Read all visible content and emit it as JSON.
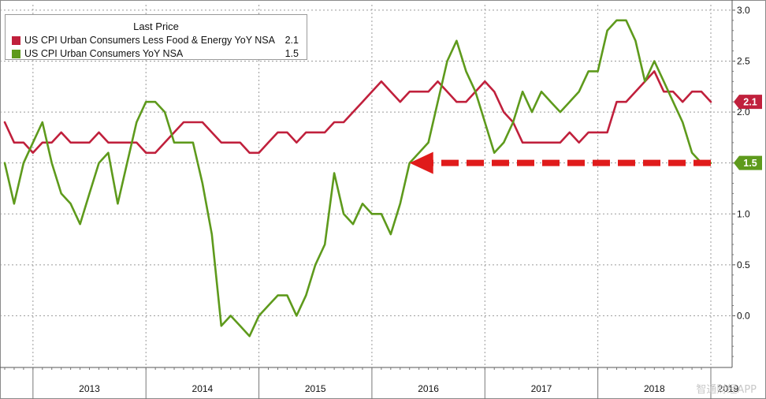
{
  "legend": {
    "title": "Last Price",
    "items": [
      {
        "name": "US CPI Urban Consumers Less Food & Energy YoY NSA",
        "value": "2.1",
        "color": "#c0203c"
      },
      {
        "name": "US CPI Urban Consumers YoY NSA",
        "value": "1.5",
        "color": "#5e9a1c"
      }
    ]
  },
  "watermark": "智通财经APP",
  "chart_data": {
    "type": "line",
    "x_axis": {
      "type": "time",
      "start": "2012-10",
      "end": "2019-01",
      "year_labels": [
        "2013",
        "2014",
        "2015",
        "2016",
        "2017",
        "2018",
        "2019"
      ]
    },
    "y_axis": {
      "side": "right",
      "ylim": [
        -0.5,
        3.1
      ],
      "ticks": [
        0.0,
        0.5,
        1.0,
        1.5,
        2.0,
        2.5,
        3.0
      ],
      "tick_labels": [
        "0.0",
        "0.5",
        "1.0",
        "1.5",
        "2.0",
        "2.5",
        "3.0"
      ]
    },
    "grid": true,
    "legend_position": "top-left",
    "series": [
      {
        "name": "US CPI Urban Consumers Less Food & Energy YoY NSA",
        "color": "#c0203c",
        "last_label": "2.1",
        "points": [
          [
            "2012-10",
            1.9
          ],
          [
            "2012-11",
            1.7
          ],
          [
            "2012-12",
            1.7
          ],
          [
            "2013-01",
            1.6
          ],
          [
            "2013-02",
            1.7
          ],
          [
            "2013-03",
            1.7
          ],
          [
            "2013-04",
            1.8
          ],
          [
            "2013-05",
            1.7
          ],
          [
            "2013-06",
            1.7
          ],
          [
            "2013-07",
            1.7
          ],
          [
            "2013-08",
            1.8
          ],
          [
            "2013-09",
            1.7
          ],
          [
            "2013-10",
            1.7
          ],
          [
            "2013-11",
            1.7
          ],
          [
            "2013-12",
            1.7
          ],
          [
            "2014-01",
            1.6
          ],
          [
            "2014-02",
            1.6
          ],
          [
            "2014-03",
            1.7
          ],
          [
            "2014-04",
            1.8
          ],
          [
            "2014-05",
            1.9
          ],
          [
            "2014-06",
            1.9
          ],
          [
            "2014-07",
            1.9
          ],
          [
            "2014-08",
            1.8
          ],
          [
            "2014-09",
            1.7
          ],
          [
            "2014-10",
            1.7
          ],
          [
            "2014-11",
            1.7
          ],
          [
            "2014-12",
            1.6
          ],
          [
            "2015-01",
            1.6
          ],
          [
            "2015-02",
            1.7
          ],
          [
            "2015-03",
            1.8
          ],
          [
            "2015-04",
            1.8
          ],
          [
            "2015-05",
            1.7
          ],
          [
            "2015-06",
            1.8
          ],
          [
            "2015-07",
            1.8
          ],
          [
            "2015-08",
            1.8
          ],
          [
            "2015-09",
            1.9
          ],
          [
            "2015-10",
            1.9
          ],
          [
            "2015-11",
            2.0
          ],
          [
            "2015-12",
            2.1
          ],
          [
            "2016-01",
            2.2
          ],
          [
            "2016-02",
            2.3
          ],
          [
            "2016-03",
            2.2
          ],
          [
            "2016-04",
            2.1
          ],
          [
            "2016-05",
            2.2
          ],
          [
            "2016-06",
            2.2
          ],
          [
            "2016-07",
            2.2
          ],
          [
            "2016-08",
            2.3
          ],
          [
            "2016-09",
            2.2
          ],
          [
            "2016-10",
            2.1
          ],
          [
            "2016-11",
            2.1
          ],
          [
            "2016-12",
            2.2
          ],
          [
            "2017-01",
            2.3
          ],
          [
            "2017-02",
            2.2
          ],
          [
            "2017-03",
            2.0
          ],
          [
            "2017-04",
            1.9
          ],
          [
            "2017-05",
            1.7
          ],
          [
            "2017-06",
            1.7
          ],
          [
            "2017-07",
            1.7
          ],
          [
            "2017-08",
            1.7
          ],
          [
            "2017-09",
            1.7
          ],
          [
            "2017-10",
            1.8
          ],
          [
            "2017-11",
            1.7
          ],
          [
            "2017-12",
            1.8
          ],
          [
            "2018-01",
            1.8
          ],
          [
            "2018-02",
            1.8
          ],
          [
            "2018-03",
            2.1
          ],
          [
            "2018-04",
            2.1
          ],
          [
            "2018-05",
            2.2
          ],
          [
            "2018-06",
            2.3
          ],
          [
            "2018-07",
            2.4
          ],
          [
            "2018-08",
            2.2
          ],
          [
            "2018-09",
            2.2
          ],
          [
            "2018-10",
            2.1
          ],
          [
            "2018-11",
            2.2
          ],
          [
            "2018-12",
            2.2
          ],
          [
            "2019-01",
            2.1
          ]
        ]
      },
      {
        "name": "US CPI Urban Consumers YoY NSA",
        "color": "#5e9a1c",
        "last_label": "1.5",
        "points": [
          [
            "2012-10",
            1.5
          ],
          [
            "2012-11",
            1.1
          ],
          [
            "2012-12",
            1.5
          ],
          [
            "2013-01",
            1.7
          ],
          [
            "2013-02",
            1.9
          ],
          [
            "2013-03",
            1.5
          ],
          [
            "2013-04",
            1.2
          ],
          [
            "2013-05",
            1.1
          ],
          [
            "2013-06",
            0.9
          ],
          [
            "2013-07",
            1.2
          ],
          [
            "2013-08",
            1.5
          ],
          [
            "2013-09",
            1.6
          ],
          [
            "2013-10",
            1.1
          ],
          [
            "2013-11",
            1.5
          ],
          [
            "2013-12",
            1.9
          ],
          [
            "2014-01",
            2.1
          ],
          [
            "2014-02",
            2.1
          ],
          [
            "2014-03",
            2.0
          ],
          [
            "2014-04",
            1.7
          ],
          [
            "2014-05",
            1.7
          ],
          [
            "2014-06",
            1.7
          ],
          [
            "2014-07",
            1.3
          ],
          [
            "2014-08",
            0.8
          ],
          [
            "2014-09",
            -0.1
          ],
          [
            "2014-10",
            0.0
          ],
          [
            "2014-11",
            -0.1
          ],
          [
            "2014-12",
            -0.2
          ],
          [
            "2015-01",
            0.0
          ],
          [
            "2015-02",
            0.1
          ],
          [
            "2015-03",
            0.2
          ],
          [
            "2015-04",
            0.2
          ],
          [
            "2015-05",
            0.0
          ],
          [
            "2015-06",
            0.2
          ],
          [
            "2015-07",
            0.5
          ],
          [
            "2015-08",
            0.7
          ],
          [
            "2015-09",
            1.4
          ],
          [
            "2015-10",
            1.0
          ],
          [
            "2015-11",
            0.9
          ],
          [
            "2015-12",
            1.1
          ],
          [
            "2016-01",
            1.0
          ],
          [
            "2016-02",
            1.0
          ],
          [
            "2016-03",
            0.8
          ],
          [
            "2016-04",
            1.1
          ],
          [
            "2016-05",
            1.5
          ],
          [
            "2016-06",
            1.6
          ],
          [
            "2016-07",
            1.7
          ],
          [
            "2016-08",
            2.1
          ],
          [
            "2016-09",
            2.5
          ],
          [
            "2016-10",
            2.7
          ],
          [
            "2016-11",
            2.4
          ],
          [
            "2016-12",
            2.2
          ],
          [
            "2017-01",
            1.9
          ],
          [
            "2017-02",
            1.6
          ],
          [
            "2017-03",
            1.7
          ],
          [
            "2017-04",
            1.9
          ],
          [
            "2017-05",
            2.2
          ],
          [
            "2017-06",
            2.0
          ],
          [
            "2017-07",
            2.2
          ],
          [
            "2017-08",
            2.1
          ],
          [
            "2017-09",
            2.0
          ],
          [
            "2017-10",
            2.1
          ],
          [
            "2017-11",
            2.2
          ],
          [
            "2017-12",
            2.4
          ],
          [
            "2018-01",
            2.4
          ],
          [
            "2018-02",
            2.8
          ],
          [
            "2018-03",
            2.9
          ],
          [
            "2018-04",
            2.9
          ],
          [
            "2018-05",
            2.7
          ],
          [
            "2018-06",
            2.3
          ],
          [
            "2018-07",
            2.5
          ],
          [
            "2018-08",
            2.3
          ],
          [
            "2018-09",
            2.1
          ],
          [
            "2018-10",
            1.9
          ],
          [
            "2018-11",
            1.6
          ],
          [
            "2018-12",
            1.5
          ],
          [
            "2019-01",
            1.5
          ]
        ]
      }
    ],
    "annotations": [
      {
        "type": "dashed-arrow",
        "color": "#e01b1b",
        "from": [
          "2019-01",
          1.5
        ],
        "to": [
          "2016-05",
          1.5
        ]
      }
    ]
  }
}
